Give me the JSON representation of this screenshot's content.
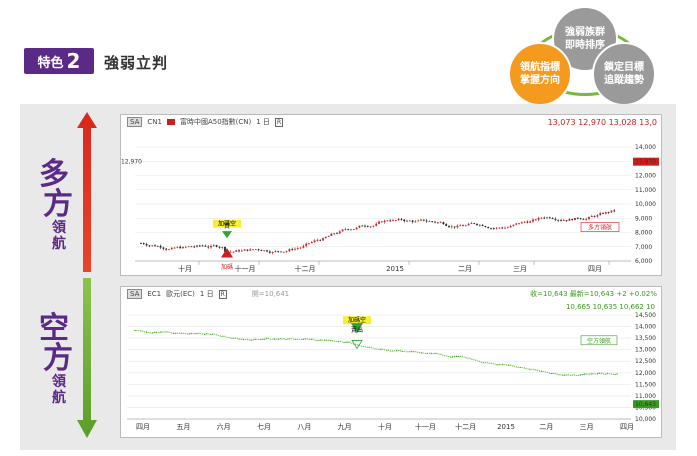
{
  "header": {
    "badge_label": "特色",
    "badge_num": "2",
    "title": "強弱立判"
  },
  "circles": {
    "top": "強弱族群\n即時排序",
    "left": "領航指標\n掌握方向",
    "right": "鎖定目標\n追蹤趨勢"
  },
  "side": {
    "up": {
      "big1": "多",
      "big2": "方",
      "small1": "領",
      "small2": "航"
    },
    "down": {
      "big1": "空",
      "big2": "方",
      "small1": "領",
      "small2": "航"
    }
  },
  "chart1": {
    "sa": "SA",
    "code": "CN1",
    "name": "富時中國A50指數(CN)",
    "period": "1 日",
    "rmenu": "R",
    "quotes": "13,073  12,970  13,028  13,0",
    "price_tag": "12,970",
    "legend": "多方領航",
    "yticks": [
      "14,000",
      "13,000",
      "12,000",
      "11,000",
      "10,000",
      "9,000",
      "8,000",
      "7,000",
      "6,000"
    ],
    "xticks": [
      "十月",
      "十一月",
      "十二月",
      "2015",
      "二月",
      "三月",
      "四月"
    ],
    "signal_buy_top": "加碼空",
    "signal_buy_sub": "買",
    "signal_bottom": "加碼"
  },
  "chart2": {
    "sa": "SA",
    "code": "EC1",
    "name": "歐元(EC)",
    "period": "1 日",
    "rmenu": "R",
    "extra": "開=10,641",
    "quotes_top": "收=10,643  最新=10,643  +2  +0.02%",
    "quotes": "10,665  10,635  10,662  10",
    "price_tag": "10,643",
    "legend": "空方領航",
    "yticks": [
      "14,500",
      "14,000",
      "13,500",
      "13,000",
      "12,500",
      "12,000",
      "11,500",
      "11,000",
      "10,500",
      "10,000"
    ],
    "xticks": [
      "四月",
      "五月",
      "六月",
      "七月",
      "八月",
      "九月",
      "十月",
      "十一月",
      "十二月",
      "2015",
      "二月",
      "三月",
      "四月"
    ],
    "signal_top": "加碼空",
    "signal_sub": "賣出"
  },
  "colors": {
    "purple": "#5b2a86",
    "orange": "#f49a1f",
    "green": "#78b83a",
    "red": "#cc1f1f",
    "grid": "#e6e6e6"
  }
}
